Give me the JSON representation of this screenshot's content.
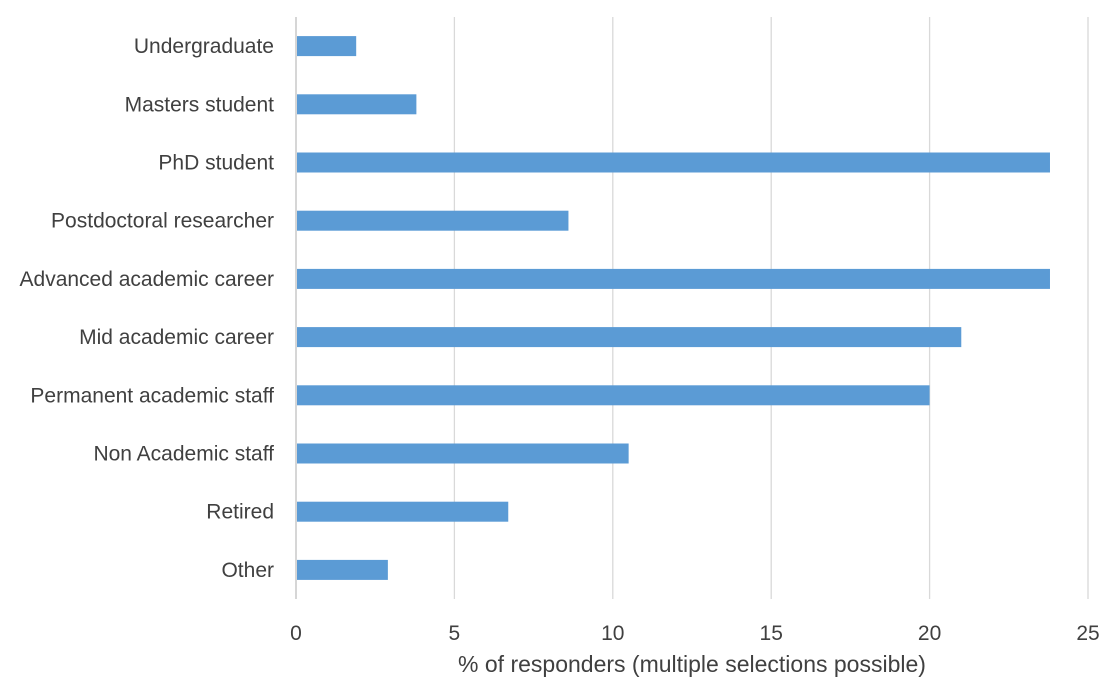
{
  "chart_data": {
    "type": "bar",
    "orientation": "horizontal",
    "categories": [
      "Undergraduate",
      "Masters student",
      "PhD student",
      "Postdoctoral researcher",
      "Advanced academic career",
      "Mid academic career",
      "Permanent academic staff",
      "Non Academic staff",
      "Retired",
      "Other"
    ],
    "values": [
      1.9,
      3.8,
      23.8,
      8.6,
      23.8,
      21.0,
      20.0,
      10.5,
      6.7,
      2.9
    ],
    "title": "",
    "xlabel": "% of responders (multiple selections possible)",
    "ylabel": "",
    "xlim": [
      0,
      25
    ],
    "xticks": [
      "0",
      "5",
      "10",
      "15",
      "20",
      "25"
    ],
    "grid": "vertical",
    "legend": "none",
    "bar_color": "#5b9bd5"
  }
}
